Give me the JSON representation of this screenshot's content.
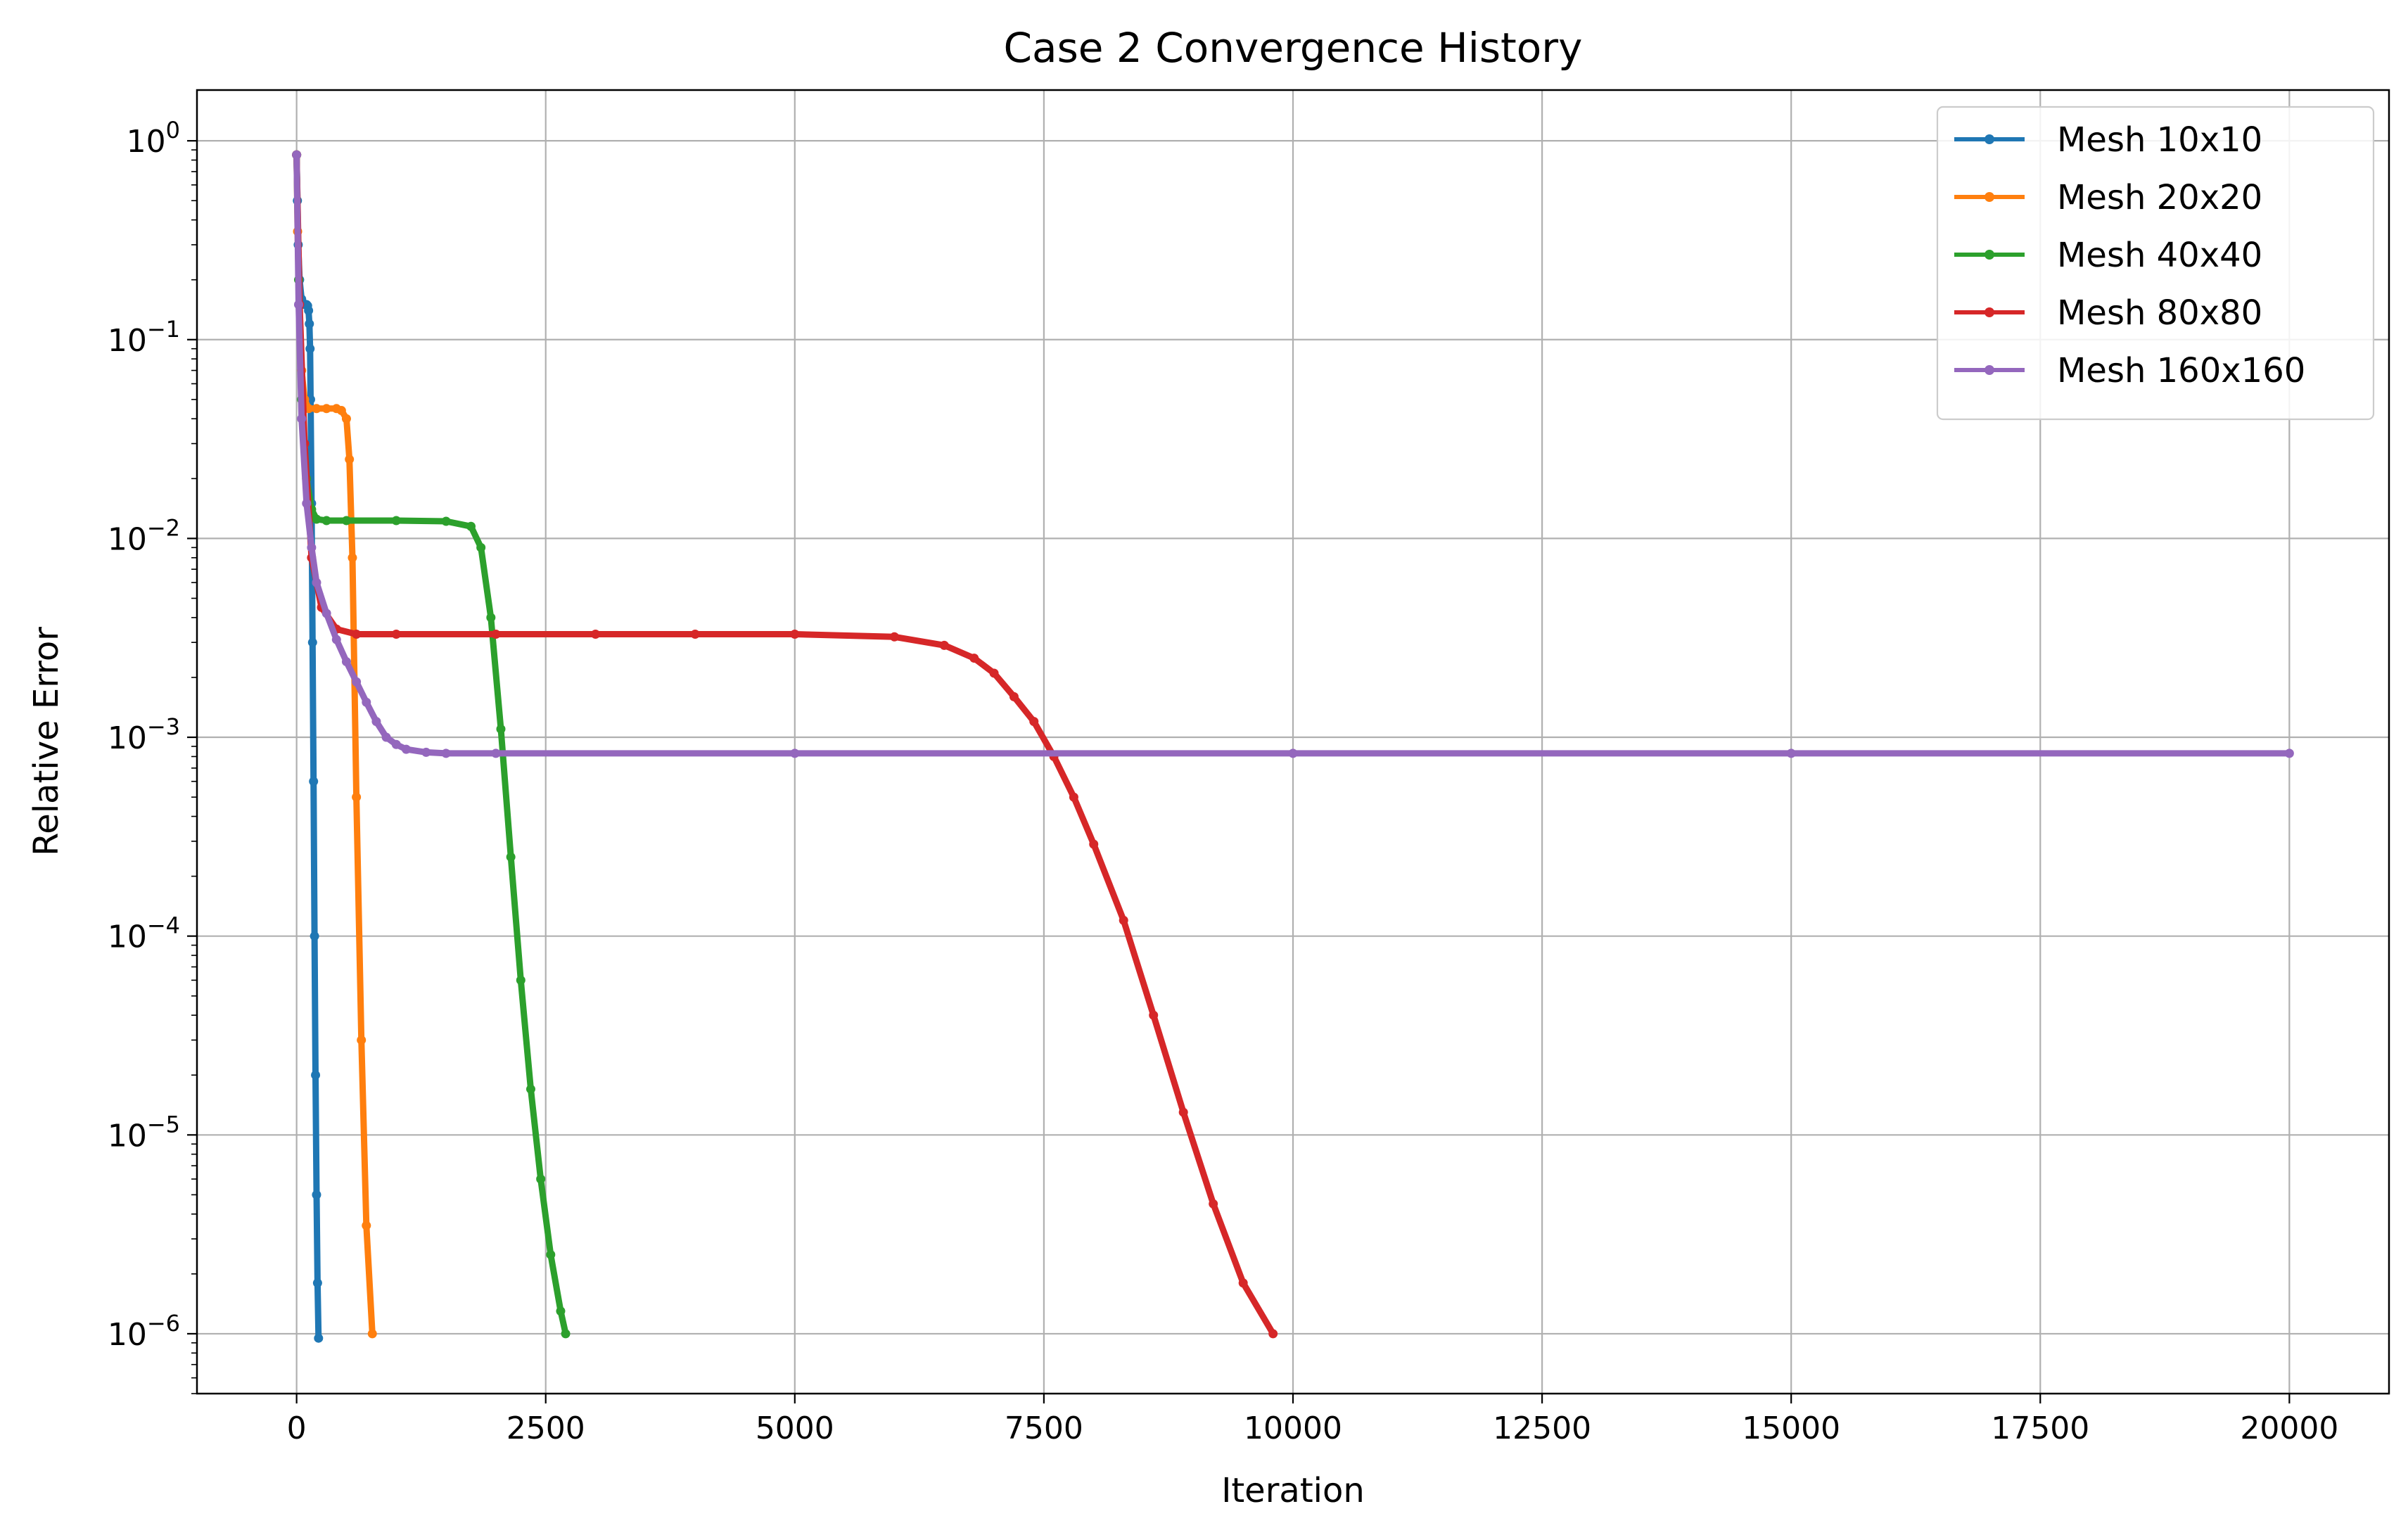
{
  "chart_data": {
    "type": "line",
    "title": "Case 2 Convergence History",
    "xlabel": "Iteration",
    "ylabel": "Relative Error",
    "xlim": [
      -1000,
      21000
    ],
    "ylim": [
      5e-07,
      1.8
    ],
    "yscale": "log",
    "grid": true,
    "legend": "top-right",
    "x_ticks": [
      0,
      2500,
      5000,
      7500,
      10000,
      12500,
      15000,
      17500,
      20000
    ],
    "x_tick_labels": [
      "0",
      "2500",
      "5000",
      "7500",
      "10000",
      "12500",
      "15000",
      "17500",
      "20000"
    ],
    "y_ticks": [
      1,
      0.1,
      0.01,
      0.001,
      0.0001,
      1e-05,
      1e-06
    ],
    "y_tick_labels": [
      {
        "base": "10",
        "exp": "0"
      },
      {
        "base": "10",
        "exp": "−1"
      },
      {
        "base": "10",
        "exp": "−2"
      },
      {
        "base": "10",
        "exp": "−3"
      },
      {
        "base": "10",
        "exp": "−4"
      },
      {
        "base": "10",
        "exp": "−5"
      },
      {
        "base": "10",
        "exp": "−6"
      }
    ],
    "series": [
      {
        "name": "Mesh 10x10",
        "color": "#1f77b4",
        "x": [
          0,
          8,
          16,
          30,
          50,
          70,
          85,
          100,
          110,
          120,
          128,
          135,
          140,
          150,
          160,
          170,
          180,
          190,
          200,
          210,
          220
        ],
        "y": [
          0.85,
          0.5,
          0.3,
          0.2,
          0.16,
          0.152,
          0.15,
          0.15,
          0.148,
          0.14,
          0.12,
          0.09,
          0.05,
          0.015,
          0.003,
          0.0006,
          0.0001,
          2e-05,
          5e-06,
          1.8e-06,
          9.5e-07
        ]
      },
      {
        "name": "Mesh 20x20",
        "color": "#ff7f0e",
        "x": [
          0,
          10,
          25,
          50,
          80,
          120,
          200,
          300,
          400,
          450,
          500,
          530,
          560,
          600,
          650,
          700,
          760
        ],
        "y": [
          0.85,
          0.35,
          0.15,
          0.07,
          0.05,
          0.045,
          0.045,
          0.045,
          0.045,
          0.044,
          0.04,
          0.025,
          0.008,
          0.0005,
          3e-05,
          3.5e-06,
          1e-06
        ]
      },
      {
        "name": "Mesh 40x40",
        "color": "#2ca02c",
        "x": [
          0,
          20,
          50,
          100,
          150,
          200,
          300,
          500,
          1000,
          1500,
          1750,
          1850,
          1950,
          2050,
          2150,
          2250,
          2350,
          2450,
          2550,
          2650,
          2700
        ],
        "y": [
          0.85,
          0.2,
          0.05,
          0.02,
          0.014,
          0.0125,
          0.0123,
          0.0123,
          0.0123,
          0.0122,
          0.0115,
          0.009,
          0.004,
          0.0011,
          0.00025,
          6e-05,
          1.7e-05,
          6e-06,
          2.5e-06,
          1.3e-06,
          1e-06
        ]
      },
      {
        "name": "Mesh 80x80",
        "color": "#d62728",
        "x": [
          0,
          30,
          80,
          150,
          250,
          400,
          600,
          1000,
          2000,
          3000,
          4000,
          5000,
          6000,
          6500,
          6800,
          7000,
          7200,
          7400,
          7600,
          7800,
          8000,
          8300,
          8600,
          8900,
          9200,
          9500,
          9800
        ],
        "y": [
          0.85,
          0.15,
          0.03,
          0.008,
          0.0045,
          0.0035,
          0.0033,
          0.0033,
          0.0033,
          0.0033,
          0.0033,
          0.0033,
          0.0032,
          0.0029,
          0.0025,
          0.0021,
          0.0016,
          0.0012,
          0.0008,
          0.0005,
          0.00029,
          0.00012,
          4e-05,
          1.3e-05,
          4.5e-06,
          1.8e-06,
          1e-06
        ]
      },
      {
        "name": "Mesh 160x160",
        "color": "#9467bd",
        "x": [
          0,
          20,
          50,
          100,
          150,
          200,
          300,
          400,
          500,
          600,
          700,
          800,
          900,
          1000,
          1100,
          1300,
          1500,
          2000,
          5000,
          10000,
          15000,
          20000
        ],
        "y": [
          0.85,
          0.15,
          0.04,
          0.015,
          0.009,
          0.006,
          0.0042,
          0.0031,
          0.0024,
          0.0019,
          0.0015,
          0.0012,
          0.001,
          0.00092,
          0.00087,
          0.00084,
          0.00083,
          0.00083,
          0.00083,
          0.00083,
          0.00083,
          0.00083
        ]
      }
    ]
  }
}
